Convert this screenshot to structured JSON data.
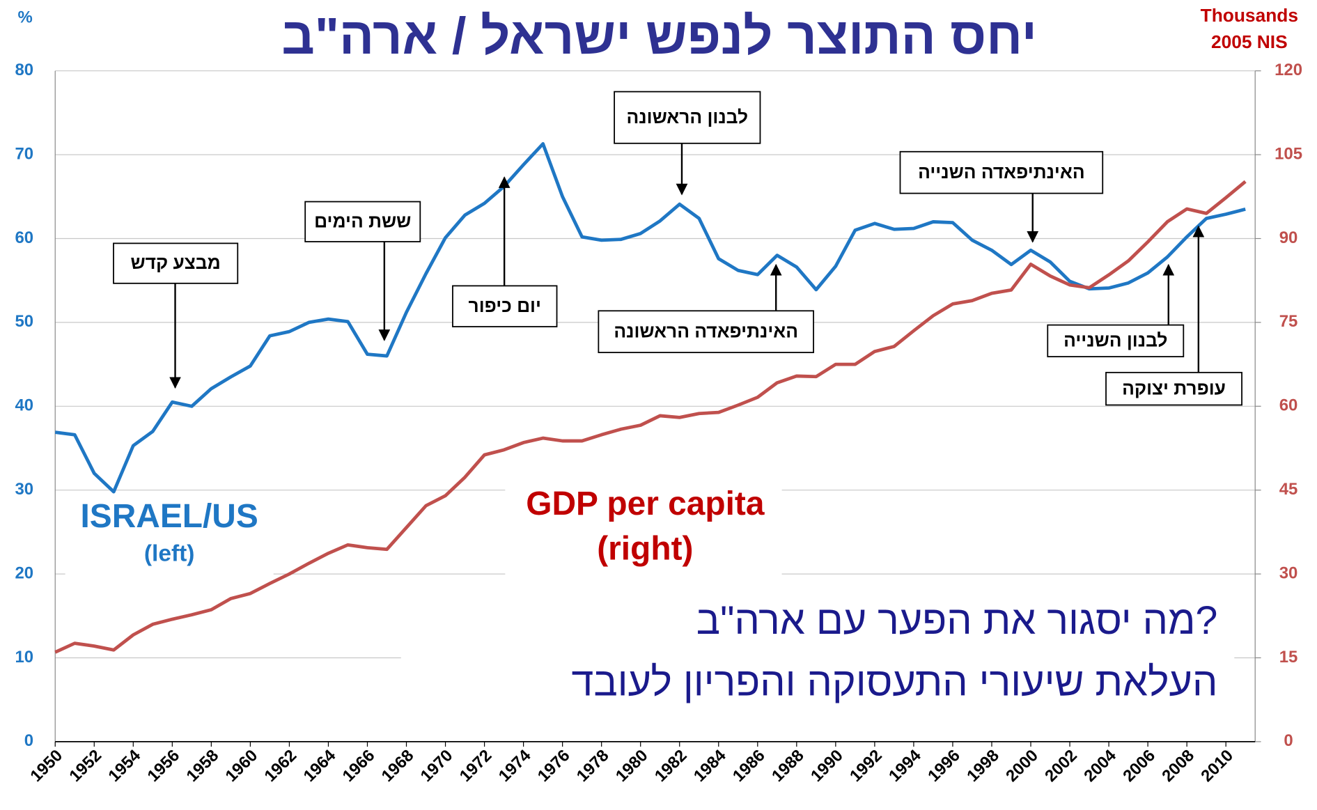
{
  "chart_data": {
    "type": "line",
    "title": "יחס התוצר לנפש ישראל / ארה\"ב",
    "y_label": "%",
    "y2_label": [
      "Thousands",
      "2005 NIS"
    ],
    "x": [
      1950,
      1951,
      1952,
      1953,
      1954,
      1955,
      1956,
      1957,
      1958,
      1959,
      1960,
      1961,
      1962,
      1963,
      1964,
      1965,
      1966,
      1967,
      1968,
      1969,
      1970,
      1971,
      1972,
      1973,
      1974,
      1975,
      1976,
      1977,
      1978,
      1979,
      1980,
      1981,
      1982,
      1983,
      1984,
      1985,
      1986,
      1987,
      1988,
      1989,
      1990,
      1991,
      1992,
      1993,
      1994,
      1995,
      1996,
      1997,
      1998,
      1999,
      2000,
      2001,
      2002,
      2003,
      2004,
      2005,
      2006,
      2007,
      2008,
      2009,
      2010,
      2011
    ],
    "xlim": [
      1950,
      2011.5
    ],
    "xticks": [
      1950,
      1952,
      1954,
      1956,
      1958,
      1960,
      1962,
      1964,
      1966,
      1968,
      1970,
      1972,
      1974,
      1976,
      1978,
      1980,
      1982,
      1984,
      1986,
      1988,
      1990,
      1992,
      1994,
      1996,
      1998,
      2000,
      2002,
      2004,
      2006,
      2008,
      2010
    ],
    "ylim": [
      0,
      80
    ],
    "yticks": [
      0,
      10,
      20,
      30,
      40,
      50,
      60,
      70,
      80
    ],
    "y2lim": [
      0,
      120
    ],
    "y2ticks": [
      0,
      15,
      30,
      45,
      60,
      75,
      90,
      105,
      120
    ],
    "grid": true,
    "series": [
      {
        "name": "ISRAEL/US",
        "note": "(left)",
        "color": "#1f77c4",
        "axis": "y",
        "values": [
          36.9,
          36.6,
          32,
          29.8,
          35.3,
          37,
          40.5,
          40,
          42.1,
          43.5,
          44.8,
          48.4,
          48.9,
          50,
          50.4,
          50.1,
          46.2,
          46,
          51.2,
          55.8,
          60.1,
          62.8,
          64.2,
          66.2,
          68.8,
          71.3,
          65,
          60.2,
          59.8,
          59.9,
          60.6,
          62.1,
          64.1,
          62.4,
          57.6,
          56.2,
          55.7,
          58,
          56.6,
          53.9,
          56.7,
          61,
          61.8,
          61.1,
          61.2,
          62,
          61.9,
          59.8,
          58.6,
          56.9,
          58.6,
          57.2,
          54.9,
          54,
          54.1,
          54.7,
          55.9,
          57.8,
          60.2,
          62.4,
          62.9,
          63.5
        ]
      },
      {
        "name": "GDP per capita",
        "note": "(right)",
        "color": "#c0504d",
        "axis": "y2",
        "values": [
          16,
          17.6,
          17.1,
          16.4,
          19.1,
          21,
          21.9,
          22.7,
          23.6,
          25.6,
          26.5,
          28.3,
          30,
          31.9,
          33.7,
          35.2,
          34.7,
          34.4,
          38.3,
          42.2,
          44,
          47.3,
          51.3,
          52.2,
          53.5,
          54.3,
          53.8,
          53.8,
          54.9,
          55.9,
          56.6,
          58.3,
          58,
          58.7,
          58.9,
          60.2,
          61.6,
          64.2,
          65.4,
          65.3,
          67.5,
          67.5,
          69.8,
          70.7,
          73.5,
          76.2,
          78.3,
          78.9,
          80.2,
          80.8,
          85.4,
          83.3,
          81.7,
          81.2,
          83.5,
          86,
          89.4,
          93,
          95.3,
          94.5,
          97.3,
          100.2
        ]
      }
    ],
    "annotations": [
      "מבצע קדש",
      "ששת הימים",
      "יום כיפור",
      "לבנון הראשונה",
      "האינתיפאדה הראשונה",
      "האינתיפאדה השנייה",
      "לבנון השנייה",
      "עופרת יצוקה"
    ],
    "footer": [
      "מה יסגור את הפער עם ארה\"ב?",
      "העלאת שיעורי התעסוקה והפריון לעובד"
    ]
  }
}
